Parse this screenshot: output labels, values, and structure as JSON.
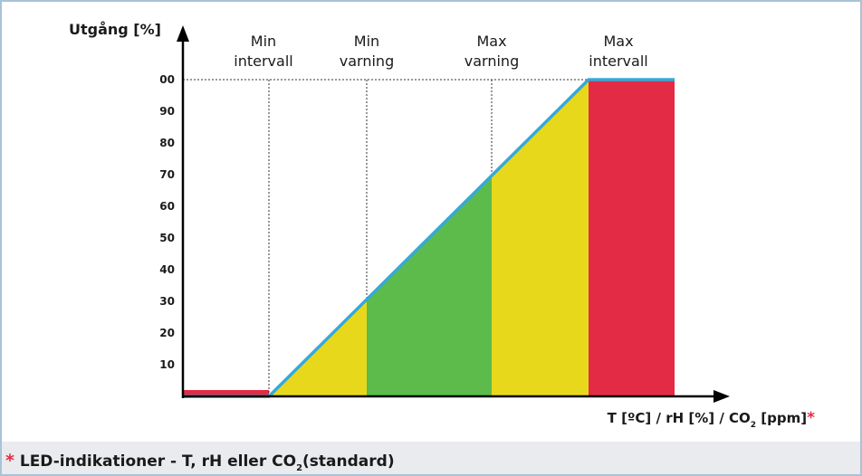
{
  "y_axis": {
    "label": "Utgång [%]",
    "ticks": [
      "00",
      "90",
      "80",
      "70",
      "60",
      "50",
      "40",
      "30",
      "20",
      "10"
    ]
  },
  "zones": [
    {
      "line1": "Min",
      "line2": "intervall"
    },
    {
      "line1": "Min",
      "line2": "varning"
    },
    {
      "line1": "Max",
      "line2": "varning"
    },
    {
      "line1": "Max",
      "line2": "intervall"
    }
  ],
  "x_axis": {
    "label_parts": [
      "T [ºC] / rH [%] / CO",
      "2",
      " [ppm]"
    ],
    "asterisk": "*"
  },
  "footnote": {
    "asterisk": "*",
    "text": " LED-indikationer - T, rH eller CO",
    "sub": "2",
    "tail": "(standard)"
  }
}
